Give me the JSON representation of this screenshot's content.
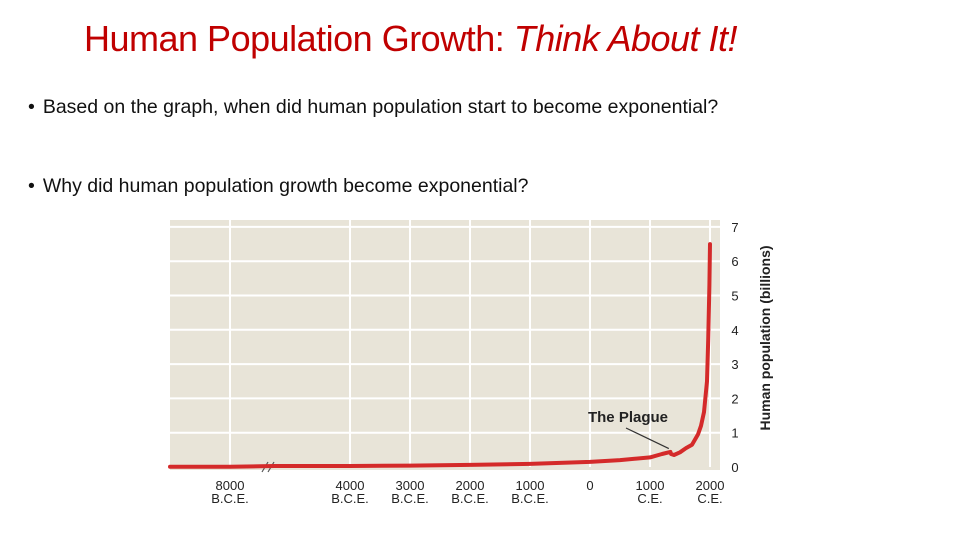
{
  "slide": {
    "title_main": "Human Population Growth:",
    "title_emphasis": "Think About It!",
    "bullets": [
      "Based on the graph, when did human population start to become exponential?",
      "Why did human population growth become exponential?"
    ],
    "bullet_symbol": "•"
  },
  "chart_data": {
    "type": "line",
    "title": "",
    "xlabel": "",
    "ylabel": "Human population (billions)",
    "ylim": [
      0,
      7
    ],
    "y_ticks": [
      0,
      1,
      2,
      3,
      4,
      5,
      6,
      7
    ],
    "x_ticks": [
      {
        "year": -8000,
        "label_top": "8000",
        "label_bottom": "B.C.E."
      },
      {
        "year": -4000,
        "label_top": "4000",
        "label_bottom": "B.C.E."
      },
      {
        "year": -3000,
        "label_top": "3000",
        "label_bottom": "B.C.E."
      },
      {
        "year": -2000,
        "label_top": "2000",
        "label_bottom": "B.C.E."
      },
      {
        "year": -1000,
        "label_top": "1000",
        "label_bottom": "B.C.E."
      },
      {
        "year": 0,
        "label_top": "0",
        "label_bottom": ""
      },
      {
        "year": 1000,
        "label_top": "1000",
        "label_bottom": "C.E."
      },
      {
        "year": 2000,
        "label_top": "2000",
        "label_bottom": "C.E."
      }
    ],
    "axis_break": "between 8000 B.C.E. and 4000 B.C.E.",
    "series": [
      {
        "color": "#d42a2a",
        "points": [
          [
            -9000,
            0.01
          ],
          [
            -8000,
            0.01
          ],
          [
            -7000,
            0.02
          ],
          [
            -6500,
            0.03
          ],
          [
            -4000,
            0.03
          ],
          [
            -3000,
            0.04
          ],
          [
            -2000,
            0.06
          ],
          [
            -1000,
            0.09
          ],
          [
            0,
            0.15
          ],
          [
            500,
            0.2
          ],
          [
            1000,
            0.28
          ],
          [
            1200,
            0.38
          ],
          [
            1340,
            0.44
          ],
          [
            1350,
            0.38
          ],
          [
            1400,
            0.35
          ],
          [
            1500,
            0.43
          ],
          [
            1600,
            0.55
          ],
          [
            1700,
            0.65
          ],
          [
            1800,
            0.95
          ],
          [
            1850,
            1.2
          ],
          [
            1900,
            1.6
          ],
          [
            1950,
            2.5
          ],
          [
            1970,
            3.7
          ],
          [
            1990,
            5.3
          ],
          [
            2000,
            6.5
          ]
        ]
      }
    ],
    "annotations": [
      {
        "text": "The Plague",
        "year": 1347,
        "value": 0.42
      }
    ],
    "grid": true,
    "colors": {
      "background": "#e8e4d8",
      "grid": "#ffffff",
      "line": "#d42a2a"
    }
  }
}
